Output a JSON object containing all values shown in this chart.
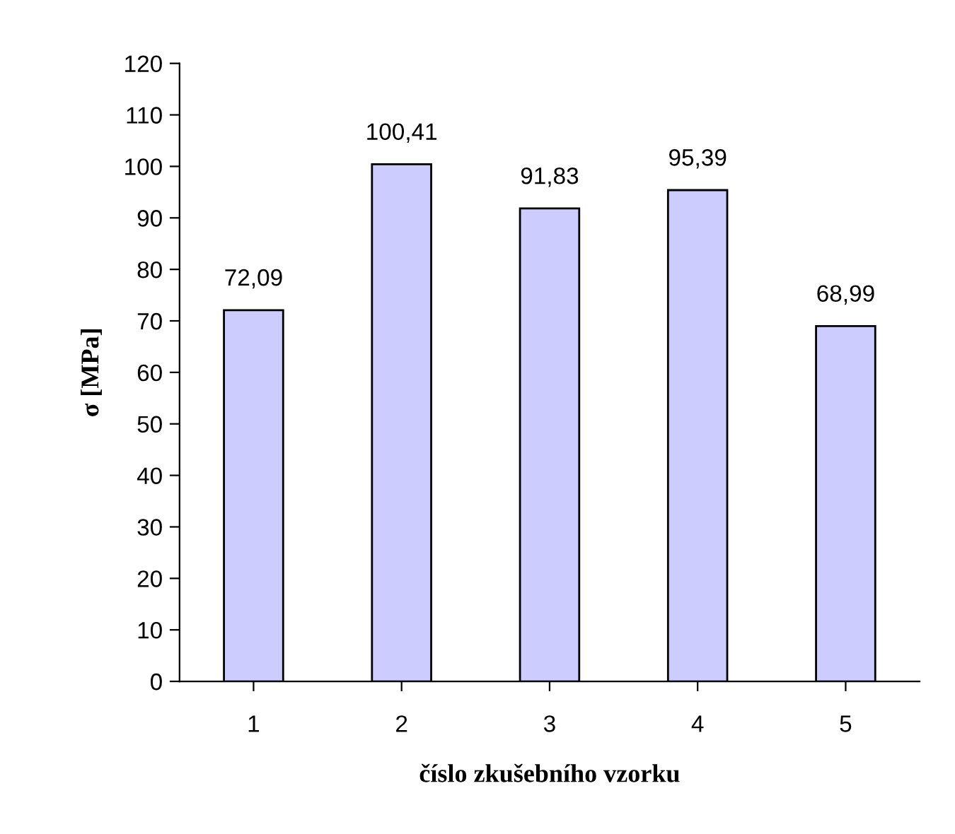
{
  "chart_data": {
    "type": "bar",
    "categories": [
      "1",
      "2",
      "3",
      "4",
      "5"
    ],
    "values": [
      72.09,
      100.41,
      91.83,
      95.39,
      68.99
    ],
    "value_labels": [
      "72,09",
      "100,41",
      "91,83",
      "95,39",
      "68,99"
    ],
    "color": "#ccccff",
    "xlabel": "číslo zkušebního vzorku",
    "ylabel": "σ [MPa]",
    "ylim": [
      0,
      120
    ],
    "yticks": [
      0,
      10,
      20,
      30,
      40,
      50,
      60,
      70,
      80,
      90,
      100,
      110,
      120
    ],
    "grid": false,
    "legend": false
  }
}
